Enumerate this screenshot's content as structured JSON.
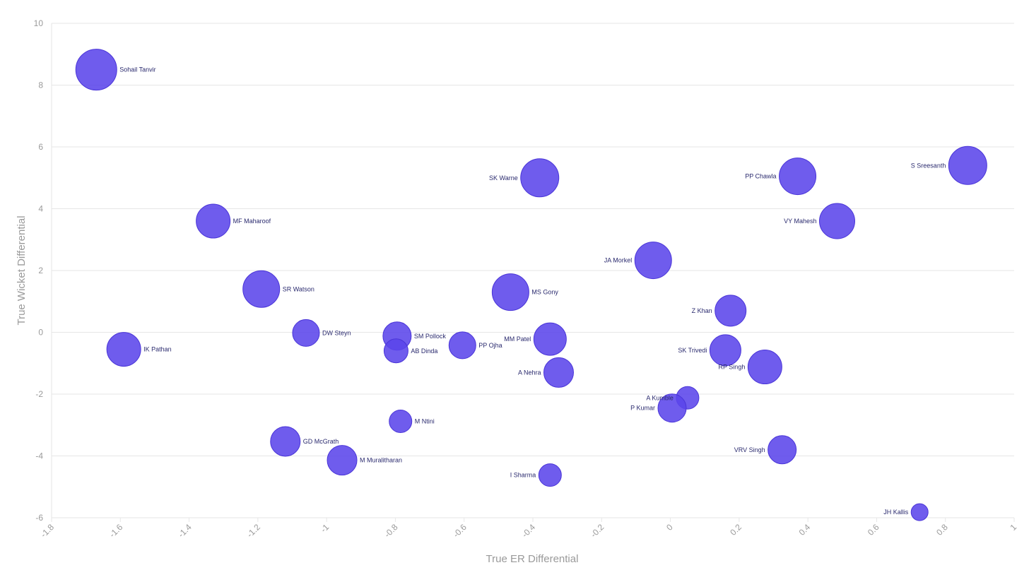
{
  "chart_data": {
    "type": "scatter",
    "title": "",
    "xlabel": "True ER Differential",
    "ylabel": "True Wicket Differential",
    "xlim": [
      -1.8,
      1
    ],
    "ylim": [
      -6,
      10
    ],
    "xticks": [
      "-1.8",
      "-1.6",
      "-1.4",
      "-1.2",
      "-1",
      "-0.8",
      "-0.6",
      "-0.4",
      "-0.2",
      "0",
      "0.2",
      "0.4",
      "0.6",
      "0.8",
      "1"
    ],
    "yticks": [
      "-6",
      "-4",
      "-2",
      "0",
      "2",
      "4",
      "6",
      "8",
      "10"
    ],
    "grid": true,
    "bubble_color": "#5b45ea",
    "points": [
      {
        "label": "Sohail Tanvir",
        "x": -1.67,
        "y": 8.5,
        "size": 29,
        "label_side": "right"
      },
      {
        "label": "MF Maharoof",
        "x": -1.33,
        "y": 3.6,
        "size": 24,
        "label_side": "right"
      },
      {
        "label": "SR Watson",
        "x": -1.19,
        "y": 1.4,
        "size": 26,
        "label_side": "right"
      },
      {
        "label": "IK Pathan",
        "x": -1.59,
        "y": -0.55,
        "size": 24,
        "label_side": "right"
      },
      {
        "label": "DW Steyn",
        "x": -1.06,
        "y": -0.02,
        "size": 19,
        "label_side": "right"
      },
      {
        "label": "GD McGrath",
        "x": -1.12,
        "y": -3.53,
        "size": 21,
        "label_side": "right"
      },
      {
        "label": "M Muralitharan",
        "x": -0.955,
        "y": -4.14,
        "size": 21,
        "label_side": "right"
      },
      {
        "label": "SM Pollock",
        "x": -0.795,
        "y": -0.12,
        "size": 20,
        "label_side": "right"
      },
      {
        "label": "AB Dinda",
        "x": -0.798,
        "y": -0.6,
        "size": 17,
        "label_side": "right"
      },
      {
        "label": "M Ntini",
        "x": -0.785,
        "y": -2.88,
        "size": 16,
        "label_side": "right"
      },
      {
        "label": "PP Ojha",
        "x": -0.605,
        "y": -0.42,
        "size": 19,
        "label_side": "right"
      },
      {
        "label": "MS Gony",
        "x": -0.465,
        "y": 1.3,
        "size": 26,
        "label_side": "right"
      },
      {
        "label": "SK Warne",
        "x": -0.38,
        "y": 5.0,
        "size": 27,
        "label_side": "left"
      },
      {
        "label": "MM Patel",
        "x": -0.35,
        "y": -0.22,
        "size": 23,
        "label_side": "left"
      },
      {
        "label": "A Nehra",
        "x": -0.325,
        "y": -1.3,
        "size": 21,
        "label_side": "left"
      },
      {
        "label": "I Sharma",
        "x": -0.35,
        "y": -4.62,
        "size": 16,
        "label_side": "left"
      },
      {
        "label": "JA Morkel",
        "x": -0.05,
        "y": 2.33,
        "size": 26,
        "label_side": "left"
      },
      {
        "label": "A Kumble",
        "x": 0.05,
        "y": -2.12,
        "size": 16,
        "label_side": "left"
      },
      {
        "label": "P Kumar",
        "x": 0.005,
        "y": -2.45,
        "size": 20,
        "label_side": "left"
      },
      {
        "label": "Z Khan",
        "x": 0.175,
        "y": 0.7,
        "size": 22,
        "label_side": "left"
      },
      {
        "label": "SK Trivedi",
        "x": 0.16,
        "y": -0.58,
        "size": 22,
        "label_side": "left"
      },
      {
        "label": "RP Singh",
        "x": 0.275,
        "y": -1.12,
        "size": 24,
        "label_side": "left"
      },
      {
        "label": "VRV Singh",
        "x": 0.325,
        "y": -3.8,
        "size": 20,
        "label_side": "left"
      },
      {
        "label": "PP Chawla",
        "x": 0.37,
        "y": 5.05,
        "size": 26,
        "label_side": "left"
      },
      {
        "label": "VY Mahesh",
        "x": 0.485,
        "y": 3.6,
        "size": 25,
        "label_side": "left"
      },
      {
        "label": "S Sreesanth",
        "x": 0.865,
        "y": 5.4,
        "size": 27,
        "label_side": "left"
      },
      {
        "label": "JH Kallis",
        "x": 0.725,
        "y": -5.82,
        "size": 12,
        "label_side": "left"
      }
    ]
  }
}
